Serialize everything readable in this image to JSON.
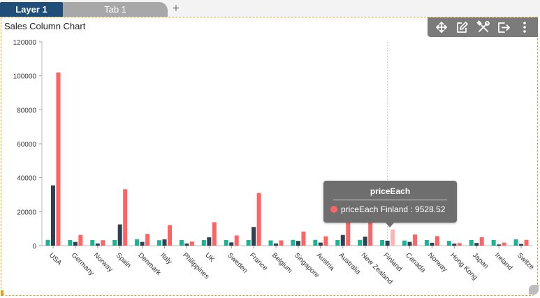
{
  "tabs": {
    "layer_label": "Layer 1",
    "tab_label": "Tab 1",
    "add_label": "+"
  },
  "widget": {
    "title": "Sales Column Chart",
    "toolbar": {
      "icons": [
        "move-icon",
        "edit-icon",
        "settings-tools-icon",
        "export-icon",
        "more-vertical-icon"
      ],
      "color": "#7b7b7b"
    }
  },
  "tooltip": {
    "title": "priceEach",
    "text": "priceEach Finland : 9528.52",
    "color": "#ff6464"
  },
  "chart_data": {
    "type": "bar",
    "title": "Sales Column Chart",
    "categories": [
      "USA",
      "Germany",
      "Norway",
      "Spain",
      "Denmark",
      "Italy",
      "Philippines",
      "UK",
      "Sweden",
      "France",
      "Belgium",
      "Singapore",
      "Austria",
      "Australia",
      "New Zealand",
      "Finland",
      "Canada",
      "Norway",
      "Hong Kong",
      "Japan",
      "Ireland",
      "Switze"
    ],
    "series": [
      {
        "color": "#1ab394",
        "values": [
          3400,
          3300,
          3300,
          3300,
          3800,
          3200,
          3300,
          3300,
          3300,
          3300,
          3100,
          3400,
          3400,
          3300,
          3400,
          3300,
          3000,
          3300,
          2800,
          3300,
          3300,
          3700
        ]
      },
      {
        "color": "#2f4050",
        "values": [
          35500,
          2200,
          1300,
          12500,
          2200,
          3700,
          1300,
          4900,
          1900,
          11000,
          1300,
          2800,
          1800,
          6300,
          5300,
          2900,
          2200,
          1700,
          1200,
          1600,
          700,
          1000
        ]
      },
      {
        "color": "#ff6464",
        "values": [
          102000,
          6300,
          3200,
          33200,
          6900,
          12100,
          2400,
          13800,
          6000,
          31000,
          3100,
          8300,
          5500,
          19000,
          18000,
          9528.52,
          6600,
          5600,
          1500,
          5000,
          1800,
          3400
        ]
      }
    ],
    "ylim": [
      0,
      120000
    ],
    "yticks": [
      0,
      20000,
      40000,
      60000,
      80000,
      100000,
      120000
    ],
    "highlight": {
      "category": "Finland",
      "series": 2
    }
  }
}
